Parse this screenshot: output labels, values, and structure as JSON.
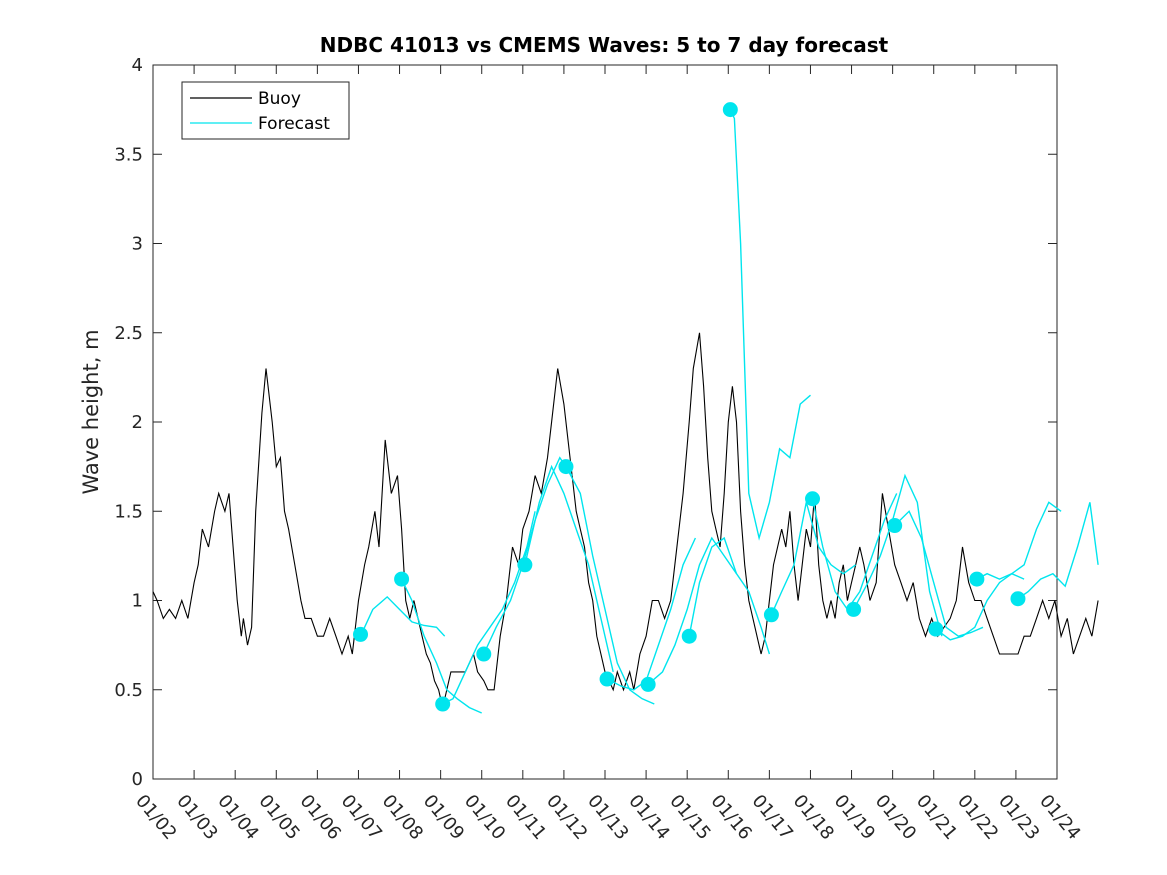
{
  "chart_data": {
    "type": "line",
    "title": "NDBC 41013 vs CMEMS Waves: 5 to 7 day forecast",
    "xlabel": "",
    "ylabel": "Wave height, m",
    "xlim": [
      "01/02",
      "01/24"
    ],
    "ylim": [
      0,
      4
    ],
    "x_tick_labels": [
      "01/02",
      "01/03",
      "01/04",
      "01/05",
      "01/06",
      "01/07",
      "01/08",
      "01/09",
      "01/10",
      "01/11",
      "01/12",
      "01/13",
      "01/14",
      "01/15",
      "01/16",
      "01/17",
      "01/18",
      "01/19",
      "01/20",
      "01/21",
      "01/22",
      "01/23",
      "01/24"
    ],
    "y_ticks": [
      0,
      0.5,
      1,
      1.5,
      2,
      2.5,
      3,
      3.5,
      4
    ],
    "y_tick_labels": [
      "0",
      "0.5",
      "1",
      "1.5",
      "2",
      "2.5",
      "3",
      "3.5",
      "4"
    ],
    "legend": {
      "location": "top-left",
      "entries": [
        {
          "label": "Buoy",
          "color": "#000000"
        },
        {
          "label": "Forecast",
          "color": "#00e5ee"
        }
      ]
    },
    "colors": {
      "buoy": "#000000",
      "forecast": "#00e5ee"
    },
    "series": [
      {
        "name": "Buoy",
        "x": [
          0.0,
          0.1,
          0.25,
          0.4,
          0.55,
          0.7,
          0.85,
          1.0,
          1.1,
          1.2,
          1.35,
          1.5,
          1.6,
          1.75,
          1.85,
          1.95,
          2.05,
          2.15,
          2.2,
          2.3,
          2.4,
          2.5,
          2.65,
          2.75,
          2.9,
          3.0,
          3.1,
          3.2,
          3.3,
          3.45,
          3.6,
          3.7,
          3.85,
          4.0,
          4.15,
          4.3,
          4.45,
          4.6,
          4.75,
          4.85,
          5.0,
          5.15,
          5.25,
          5.4,
          5.5,
          5.65,
          5.8,
          5.95,
          6.05,
          6.15,
          6.25,
          6.35,
          6.45,
          6.55,
          6.65,
          6.75,
          6.85,
          6.95,
          7.05,
          7.15,
          7.25,
          7.4,
          7.5,
          7.6,
          7.7,
          7.8,
          7.9,
          8.05,
          8.15,
          8.3,
          8.45,
          8.6,
          8.75,
          8.9,
          9.0,
          9.15,
          9.3,
          9.45,
          9.6,
          9.7,
          9.85,
          10.0,
          10.1,
          10.2,
          10.3,
          10.4,
          10.5,
          10.6,
          10.7,
          10.8,
          10.9,
          11.0,
          11.1,
          11.2,
          11.3,
          11.45,
          11.6,
          11.7,
          11.85,
          12.0,
          12.15,
          12.3,
          12.45,
          12.6,
          12.75,
          12.9,
          13.05,
          13.15,
          13.3,
          13.4,
          13.5,
          13.6,
          13.7,
          13.8,
          13.9,
          14.0,
          14.1,
          14.2,
          14.3,
          14.4,
          14.5,
          14.6,
          14.7,
          14.8,
          14.9,
          15.0,
          15.1,
          15.2,
          15.3,
          15.4,
          15.5,
          15.6,
          15.7,
          15.8,
          15.9,
          16.0,
          16.1,
          16.2,
          16.3,
          16.4,
          16.5,
          16.6,
          16.7,
          16.8,
          16.9,
          17.0,
          17.1,
          17.2,
          17.3,
          17.45,
          17.6,
          17.75,
          17.9,
          18.05,
          18.2,
          18.35,
          18.5,
          18.65,
          18.8,
          18.95,
          19.1,
          19.25,
          19.4,
          19.55,
          19.7,
          19.85,
          20.0,
          20.15,
          20.3,
          20.45,
          20.6,
          20.75,
          20.9,
          21.05,
          21.2,
          21.35,
          21.5,
          21.65,
          21.8,
          21.95,
          22.1,
          22.25,
          22.4,
          22.55,
          22.7,
          22.85,
          23.0
        ],
        "y": [
          1.05,
          1.0,
          0.9,
          0.95,
          0.9,
          1.0,
          0.9,
          1.1,
          1.2,
          1.4,
          1.3,
          1.5,
          1.6,
          1.5,
          1.6,
          1.3,
          1.0,
          0.8,
          0.9,
          0.75,
          0.85,
          1.5,
          2.05,
          2.3,
          2.0,
          1.75,
          1.8,
          1.5,
          1.4,
          1.2,
          1.0,
          0.9,
          0.9,
          0.8,
          0.8,
          0.9,
          0.8,
          0.7,
          0.8,
          0.7,
          1.0,
          1.2,
          1.3,
          1.5,
          1.3,
          1.9,
          1.6,
          1.7,
          1.4,
          1.0,
          0.9,
          1.0,
          0.9,
          0.8,
          0.7,
          0.65,
          0.55,
          0.5,
          0.4,
          0.5,
          0.6,
          0.6,
          0.6,
          0.6,
          0.65,
          0.7,
          0.6,
          0.55,
          0.5,
          0.5,
          0.8,
          1.0,
          1.3,
          1.2,
          1.4,
          1.5,
          1.7,
          1.6,
          1.8,
          2.0,
          2.3,
          2.1,
          1.9,
          1.7,
          1.5,
          1.4,
          1.3,
          1.1,
          1.0,
          0.8,
          0.7,
          0.6,
          0.55,
          0.5,
          0.6,
          0.5,
          0.6,
          0.5,
          0.7,
          0.8,
          1.0,
          1.0,
          0.9,
          1.0,
          1.3,
          1.6,
          2.0,
          2.3,
          2.5,
          2.2,
          1.8,
          1.5,
          1.4,
          1.3,
          1.6,
          2.0,
          2.2,
          2.0,
          1.5,
          1.2,
          1.0,
          0.9,
          0.8,
          0.7,
          0.8,
          1.0,
          1.2,
          1.3,
          1.4,
          1.3,
          1.5,
          1.2,
          1.0,
          1.2,
          1.4,
          1.3,
          1.6,
          1.2,
          1.0,
          0.9,
          1.0,
          0.9,
          1.1,
          1.2,
          1.0,
          1.1,
          1.2,
          1.3,
          1.2,
          1.0,
          1.1,
          1.6,
          1.4,
          1.2,
          1.1,
          1.0,
          1.1,
          0.9,
          0.8,
          0.9,
          0.8,
          0.85,
          0.9,
          1.0,
          1.3,
          1.1,
          1.0,
          1.0,
          0.9,
          0.8,
          0.7,
          0.7,
          0.7,
          0.7,
          0.8,
          0.8,
          0.9,
          1.0,
          0.9,
          1.0,
          0.8,
          0.9,
          0.7,
          0.8,
          0.9,
          0.8,
          1.0
        ]
      },
      {
        "name": "Forecast",
        "segments": [
          {
            "x": [
              5.05,
              5.35,
              5.7,
              6.0,
              6.3,
              6.6,
              6.9,
              7.1
            ],
            "y": [
              0.8,
              0.95,
              1.02,
              0.95,
              0.88,
              0.86,
              0.85,
              0.8
            ]
          },
          {
            "x": [
              6.05,
              6.3,
              6.6,
              6.9,
              7.15,
              7.4,
              7.7,
              8.0
            ],
            "y": [
              1.12,
              1.0,
              0.8,
              0.65,
              0.5,
              0.45,
              0.4,
              0.37
            ]
          },
          {
            "x": [
              7.05,
              7.3,
              7.6,
              7.9,
              8.2,
              8.5,
              8.8,
              9.1,
              9.3
            ],
            "y": [
              0.42,
              0.45,
              0.6,
              0.75,
              0.85,
              0.95,
              1.1,
              1.3,
              1.5
            ]
          },
          {
            "x": [
              8.05,
              8.35,
              8.7,
              9.0,
              9.3,
              9.6,
              9.9,
              10.2
            ],
            "y": [
              0.7,
              0.85,
              1.0,
              1.2,
              1.45,
              1.65,
              1.8,
              1.7
            ]
          },
          {
            "x": [
              9.05,
              9.4,
              9.7,
              10.0,
              10.3,
              10.6,
              10.9,
              11.2
            ],
            "y": [
              1.2,
              1.55,
              1.75,
              1.6,
              1.4,
              1.2,
              0.9,
              0.6
            ]
          },
          {
            "x": [
              10.05,
              10.4,
              10.7,
              11.0,
              11.3,
              11.6,
              11.9,
              12.2
            ],
            "y": [
              1.75,
              1.6,
              1.25,
              0.95,
              0.65,
              0.5,
              0.45,
              0.42
            ]
          },
          {
            "x": [
              11.05,
              11.4,
              11.7,
              12.0,
              12.3,
              12.6,
              12.9,
              13.2
            ],
            "y": [
              0.56,
              0.52,
              0.5,
              0.55,
              0.75,
              0.95,
              1.2,
              1.35
            ]
          },
          {
            "x": [
              12.05,
              12.4,
              12.7,
              13.0,
              13.3,
              13.6,
              13.9,
              14.2
            ],
            "y": [
              0.53,
              0.6,
              0.75,
              0.95,
              1.2,
              1.35,
              1.25,
              1.15
            ]
          },
          {
            "x": [
              13.05,
              13.3,
              13.6,
              13.9,
              14.2,
              14.5,
              14.8,
              15.0
            ],
            "y": [
              0.8,
              1.1,
              1.3,
              1.35,
              1.15,
              1.05,
              0.85,
              0.7
            ]
          },
          {
            "x": [
              14.05,
              14.15,
              14.3,
              14.5,
              14.75,
              15.0,
              15.25,
              15.5,
              15.75,
              16.0
            ],
            "y": [
              3.75,
              3.7,
              3.0,
              1.6,
              1.35,
              1.55,
              1.85,
              1.8,
              2.1,
              2.15
            ]
          },
          {
            "x": [
              15.05,
              15.3,
              15.6,
              15.9,
              16.2,
              16.5,
              16.8,
              17.1
            ],
            "y": [
              0.92,
              1.05,
              1.2,
              1.55,
              1.3,
              1.2,
              1.15,
              1.2
            ]
          },
          {
            "x": [
              16.05,
              16.3,
              16.6,
              16.9,
              17.2,
              17.5,
              17.8,
              18.1
            ],
            "y": [
              1.57,
              1.3,
              1.05,
              0.95,
              1.05,
              1.25,
              1.45,
              1.6
            ]
          },
          {
            "x": [
              17.05,
              17.4,
              17.7,
              18.0,
              18.3,
              18.6,
              18.9,
              19.2
            ],
            "y": [
              0.95,
              1.1,
              1.25,
              1.45,
              1.7,
              1.55,
              1.05,
              0.8
            ]
          },
          {
            "x": [
              18.05,
              18.4,
              18.7,
              19.0,
              19.3,
              19.6,
              19.9,
              20.2
            ],
            "y": [
              1.42,
              1.5,
              1.35,
              1.1,
              0.85,
              0.8,
              0.82,
              0.85
            ]
          },
          {
            "x": [
              19.05,
              19.4,
              19.7,
              20.0,
              20.3,
              20.6,
              20.9,
              21.2
            ],
            "y": [
              0.84,
              0.78,
              0.8,
              0.85,
              1.0,
              1.1,
              1.15,
              1.12
            ]
          },
          {
            "x": [
              20.05,
              20.3,
              20.6,
              20.9,
              21.2,
              21.5,
              21.8,
              22.1
            ],
            "y": [
              1.12,
              1.15,
              1.12,
              1.15,
              1.2,
              1.4,
              1.55,
              1.5
            ]
          },
          {
            "x": [
              21.05,
              21.3,
              21.6,
              21.9,
              22.2,
              22.5,
              22.8,
              23.0
            ],
            "y": [
              1.01,
              1.05,
              1.12,
              1.15,
              1.08,
              1.3,
              1.55,
              1.2
            ]
          }
        ],
        "markers": {
          "x": [
            5.05,
            6.05,
            7.05,
            8.05,
            9.05,
            10.05,
            11.05,
            12.05,
            13.05,
            14.05,
            15.05,
            16.05,
            17.05,
            18.05,
            19.05,
            20.05,
            21.05
          ],
          "y": [
            0.81,
            1.12,
            0.42,
            0.7,
            1.2,
            1.75,
            0.56,
            0.53,
            0.8,
            3.75,
            0.92,
            1.57,
            0.95,
            1.42,
            0.84,
            1.12,
            1.01
          ]
        }
      }
    ]
  }
}
